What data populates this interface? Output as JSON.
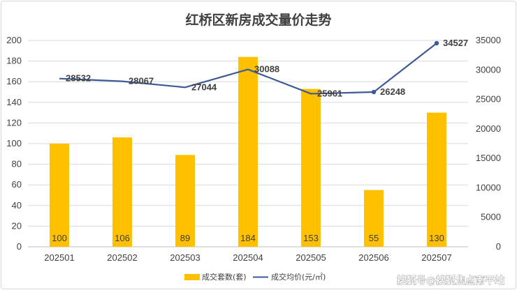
{
  "chart_data": {
    "type": "bar",
    "title": "红桥区新房成交量价走势",
    "categories": [
      "202501",
      "202502",
      "202503",
      "202504",
      "202505",
      "202506",
      "202507"
    ],
    "series": [
      {
        "name": "成交套数(套)",
        "type": "bar",
        "axis": "left",
        "values": [
          100,
          106,
          89,
          184,
          153,
          55,
          130
        ],
        "color": "#FFC000"
      },
      {
        "name": "成交均价(元/㎡)",
        "type": "line",
        "axis": "right",
        "values": [
          28532,
          28067,
          27044,
          30088,
          25961,
          26248,
          34527
        ],
        "color": "#3D5A98"
      }
    ],
    "y_left": {
      "ylim": [
        0,
        200
      ],
      "ticks": [
        0,
        20,
        40,
        60,
        80,
        100,
        120,
        140,
        160,
        180,
        200
      ]
    },
    "y_right": {
      "ylim": [
        0,
        35000
      ],
      "ticks": [
        0,
        5000,
        10000,
        15000,
        20000,
        25000,
        30000,
        35000
      ]
    },
    "grid": true,
    "legend": "bottom",
    "highlight_label_color": "#E00000"
  },
  "watermark": "搜狐号@搜狐焦点南平站"
}
